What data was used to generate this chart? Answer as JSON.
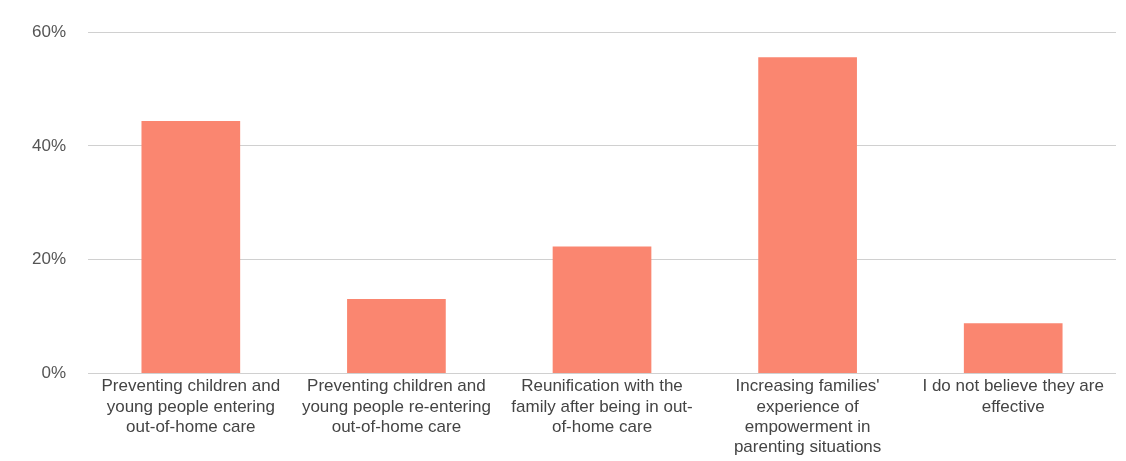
{
  "chart_data": {
    "type": "bar",
    "categories": [
      "Preventing children and young people entering out-of-home care",
      "Preventing children and young people re-entering out-of-home care",
      "Reunification with the family after being in out-of-home care",
      "Increasing families' experience of empowerment in parenting situations",
      "I do not believe they are effective"
    ],
    "values": [
      44.4,
      13.1,
      22.3,
      55.6,
      8.8
    ],
    "color": "#fa8670",
    "ylim": [
      0,
      60
    ],
    "yticks": [
      {
        "value": 0,
        "label": "0%"
      },
      {
        "value": 20,
        "label": "20%"
      },
      {
        "value": 40,
        "label": "40%"
      },
      {
        "value": 60,
        "label": "60%"
      }
    ],
    "grid": "y",
    "legend": false
  }
}
